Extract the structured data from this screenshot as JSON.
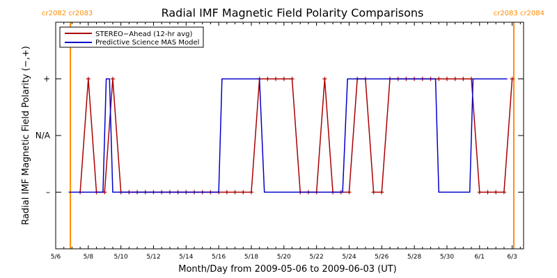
{
  "chart_data": {
    "type": "line",
    "title": "Radial IMF Magnetic Field Polarity Comparisons",
    "xlabel": "Month/Day from 2009-05-06 to 2009-06-03 (UT)",
    "ylabel": "Radial IMF Magnetic Field Polarity (−,+)",
    "x_ticks": [
      {
        "day": 0,
        "label": "5/6"
      },
      {
        "day": 2,
        "label": "5/8"
      },
      {
        "day": 4,
        "label": "5/10"
      },
      {
        "day": 6,
        "label": "5/12"
      },
      {
        "day": 8,
        "label": "5/14"
      },
      {
        "day": 10,
        "label": "5/16"
      },
      {
        "day": 12,
        "label": "5/18"
      },
      {
        "day": 14,
        "label": "5/20"
      },
      {
        "day": 16,
        "label": "5/22"
      },
      {
        "day": 18,
        "label": "5/24"
      },
      {
        "day": 20,
        "label": "5/26"
      },
      {
        "day": 22,
        "label": "5/28"
      },
      {
        "day": 24,
        "label": "5/30"
      },
      {
        "day": 26,
        "label": "6/1"
      },
      {
        "day": 28,
        "label": "6/3"
      }
    ],
    "y_ticks": [
      {
        "value": 1,
        "label": "+"
      },
      {
        "value": 0,
        "label": "N/A"
      },
      {
        "value": -1,
        "label": "–"
      }
    ],
    "xlim": [
      0,
      28.7
    ],
    "ylim": [
      -2,
      2
    ],
    "legend_position": "top-left",
    "carrington": [
      {
        "day": 0.9,
        "label": "cr2082 cr2083",
        "align": "left"
      },
      {
        "day": 28.1,
        "label": "cr2083 cr2084",
        "align": "right"
      }
    ],
    "series": [
      {
        "name": "STEREO−Ahead (12-hr avg)",
        "color": "#aa0000",
        "marker": "+",
        "x": [
          1.5,
          2.0,
          2.5,
          3.0,
          3.5,
          4.0,
          4.5,
          5.0,
          5.5,
          6.0,
          6.5,
          7.0,
          7.5,
          8.0,
          8.5,
          9.0,
          9.5,
          10.0,
          10.5,
          11.0,
          11.5,
          12.0,
          12.5,
          13.0,
          13.5,
          14.0,
          14.5,
          15.0,
          15.5,
          16.0,
          16.5,
          17.0,
          17.5,
          18.0,
          18.5,
          19.0,
          19.5,
          20.0,
          20.5,
          21.0,
          21.5,
          22.0,
          22.5,
          23.0,
          23.5,
          24.0,
          24.5,
          25.0,
          25.5,
          26.0,
          26.5,
          27.0,
          27.5,
          28.0
        ],
        "y": [
          -1,
          1,
          -1,
          -1,
          1,
          -1,
          -1,
          -1,
          -1,
          -1,
          -1,
          -1,
          -1,
          -1,
          -1,
          -1,
          -1,
          -1,
          -1,
          -1,
          -1,
          -1,
          1,
          1,
          1,
          1,
          1,
          -1,
          -1,
          -1,
          1,
          -1,
          -1,
          -1,
          1,
          1,
          -1,
          -1,
          1,
          1,
          1,
          1,
          1,
          1,
          1,
          1,
          1,
          1,
          1,
          -1,
          -1,
          -1,
          -1,
          1
        ],
        "note_hidden": ""
      },
      {
        "name": "Predictive Science MAS Model",
        "color": "#0000cc",
        "x": [
          0.8,
          2.9,
          3.1,
          3.3,
          3.5,
          10.0,
          10.2,
          12.5,
          12.8,
          17.6,
          17.9,
          23.3,
          23.5,
          25.4,
          25.6,
          27.7
        ],
        "y": [
          -1,
          -1,
          1,
          1,
          -1,
          -1,
          1,
          1,
          -1,
          -1,
          1,
          1,
          -1,
          -1,
          1,
          1
        ],
        "note_hidden": ""
      }
    ]
  }
}
